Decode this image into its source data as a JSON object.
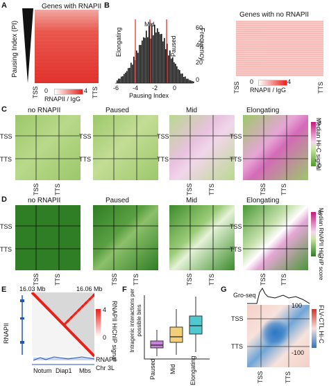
{
  "panels": {
    "A": {
      "letter": "A",
      "title": "Genes with RNAPII",
      "ylabel": "Pausing Index (PI)",
      "x_ticks": [
        "TSS",
        "TTS"
      ],
      "cbar_min": "0",
      "cbar_max": "4",
      "cbar_label": "RNAPII / IgG",
      "color": "#e8201a"
    },
    "B": {
      "letter": "B",
      "title": "",
      "xlabel": "Pausing Index",
      "ylabel": "Frequency",
      "region_labels": [
        "Elongating",
        "Mid",
        "Paused"
      ],
      "x_ticks": [
        "-6",
        "-4",
        "-2",
        "0"
      ],
      "y_ticks": [
        "0",
        "20",
        "40",
        "60"
      ],
      "right_title": "Genes with no RNAPII",
      "right_ticks": [
        "TSS",
        "TTS"
      ],
      "cbar_min": "0",
      "cbar_max": "4",
      "cbar_label": "RNAPII / IgG"
    },
    "C": {
      "letter": "C",
      "titles": [
        "no RNAPII",
        "Paused",
        "Mid",
        "Elongating"
      ],
      "tss": "TSS",
      "tts": "TTS",
      "cbar_label": "Median Hi-C signal",
      "cbar_min": "0",
      "cbar_max": "3"
    },
    "D": {
      "letter": "D",
      "titles": [
        "no RNAPII",
        "Paused",
        "Mid",
        "Elongating"
      ],
      "tss": "TSS",
      "tts": "TTS",
      "cbar_label": "Median RNAPII HiChIP score",
      "cbar_min": "0",
      "cbar_max": "8"
    },
    "E": {
      "letter": "E",
      "coord_left": "16.03 Mb",
      "coord_right": "16.06 Mb",
      "cbar_label": "RNAPII HiChIP signal",
      "cbar_min": "0",
      "cbar_max": "4",
      "side_label": "RNAPII",
      "track_label": "RNAPII",
      "chrom_label": "Chr 3L",
      "genes": [
        "Notum",
        "Diap1",
        "Mbs"
      ]
    },
    "F": {
      "letter": "F",
      "ylabel": "Intragenic interactions per possible bins",
      "categories": [
        "Paused",
        "Mid",
        "Elongating"
      ],
      "colors": [
        "#c982d9",
        "#f3cf7a",
        "#4fc8cf"
      ]
    },
    "G": {
      "letter": "G",
      "track_label": "Gro-seq",
      "tss": "TSS",
      "tts": "TTS",
      "cbar_label": "FLV-CTL Hi-C",
      "cbar_max": "100",
      "cbar_min": "-100"
    }
  }
}
